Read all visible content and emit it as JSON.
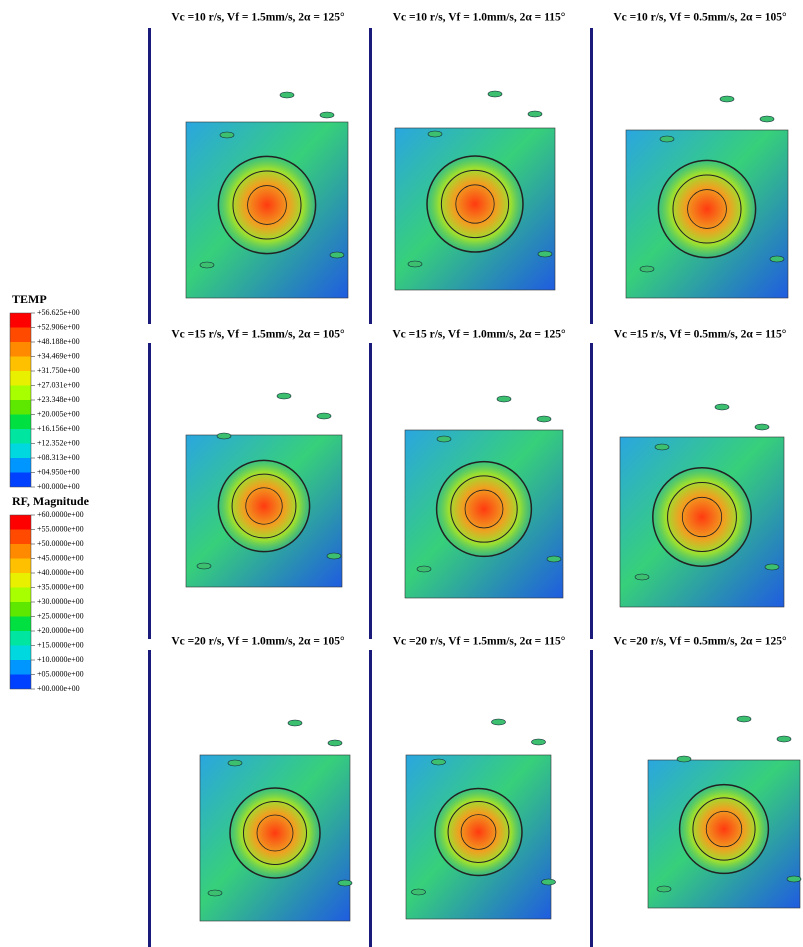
{
  "panels": [
    {
      "label": "Vc =10 r/s, Vf = 1.5mm/s, 2α = 125°"
    },
    {
      "label": "Vc =10 r/s, Vf = 1.0mm/s, 2α = 115°"
    },
    {
      "label": "Vc =10 r/s, Vf = 0.5mm/s, 2α = 105°"
    },
    {
      "label": "Vc =15 r/s, Vf = 1.5mm/s, 2α = 105°"
    },
    {
      "label": "Vc =15 r/s, Vf = 1.0mm/s, 2α = 125°"
    },
    {
      "label": "Vc =15 r/s, Vf = 0.5mm/s, 2α = 115°"
    },
    {
      "label": "Vc =20 r/s, Vf = 1.0mm/s, 2α = 105°"
    },
    {
      "label": "Vc =20 r/s, Vf = 1.5mm/s, 2α = 115°"
    },
    {
      "label": "Vc =20 r/s, Vf = 0.5mm/s, 2α = 125°"
    }
  ],
  "legends": [
    {
      "title": "TEMP",
      "labels": [
        "+56.625e+00",
        "+52.906e+00",
        "+48.188e+00",
        "+34.469e+00",
        "+31.750e+00",
        "+27.031e+00",
        "+23.348e+00",
        "+20.005e+00",
        "+16.156e+00",
        "+12.352e+00",
        "+08.313e+00",
        "+04.950e+00",
        "+00.000e+00"
      ]
    },
    {
      "title": "RF, Magnitude",
      "labels": [
        "+60.0000e+00",
        "+55.0000e+00",
        "+50.0000e+00",
        "+45.0000e+00",
        "+40.0000e+00",
        "+35.0000e+00",
        "+30.0000e+00",
        "+25.0000e+00",
        "+20.0000e+00",
        "+15.0000e+00",
        "+10.0000e+00",
        "+05.0000e+00",
        "+00.000e+00"
      ]
    }
  ]
}
